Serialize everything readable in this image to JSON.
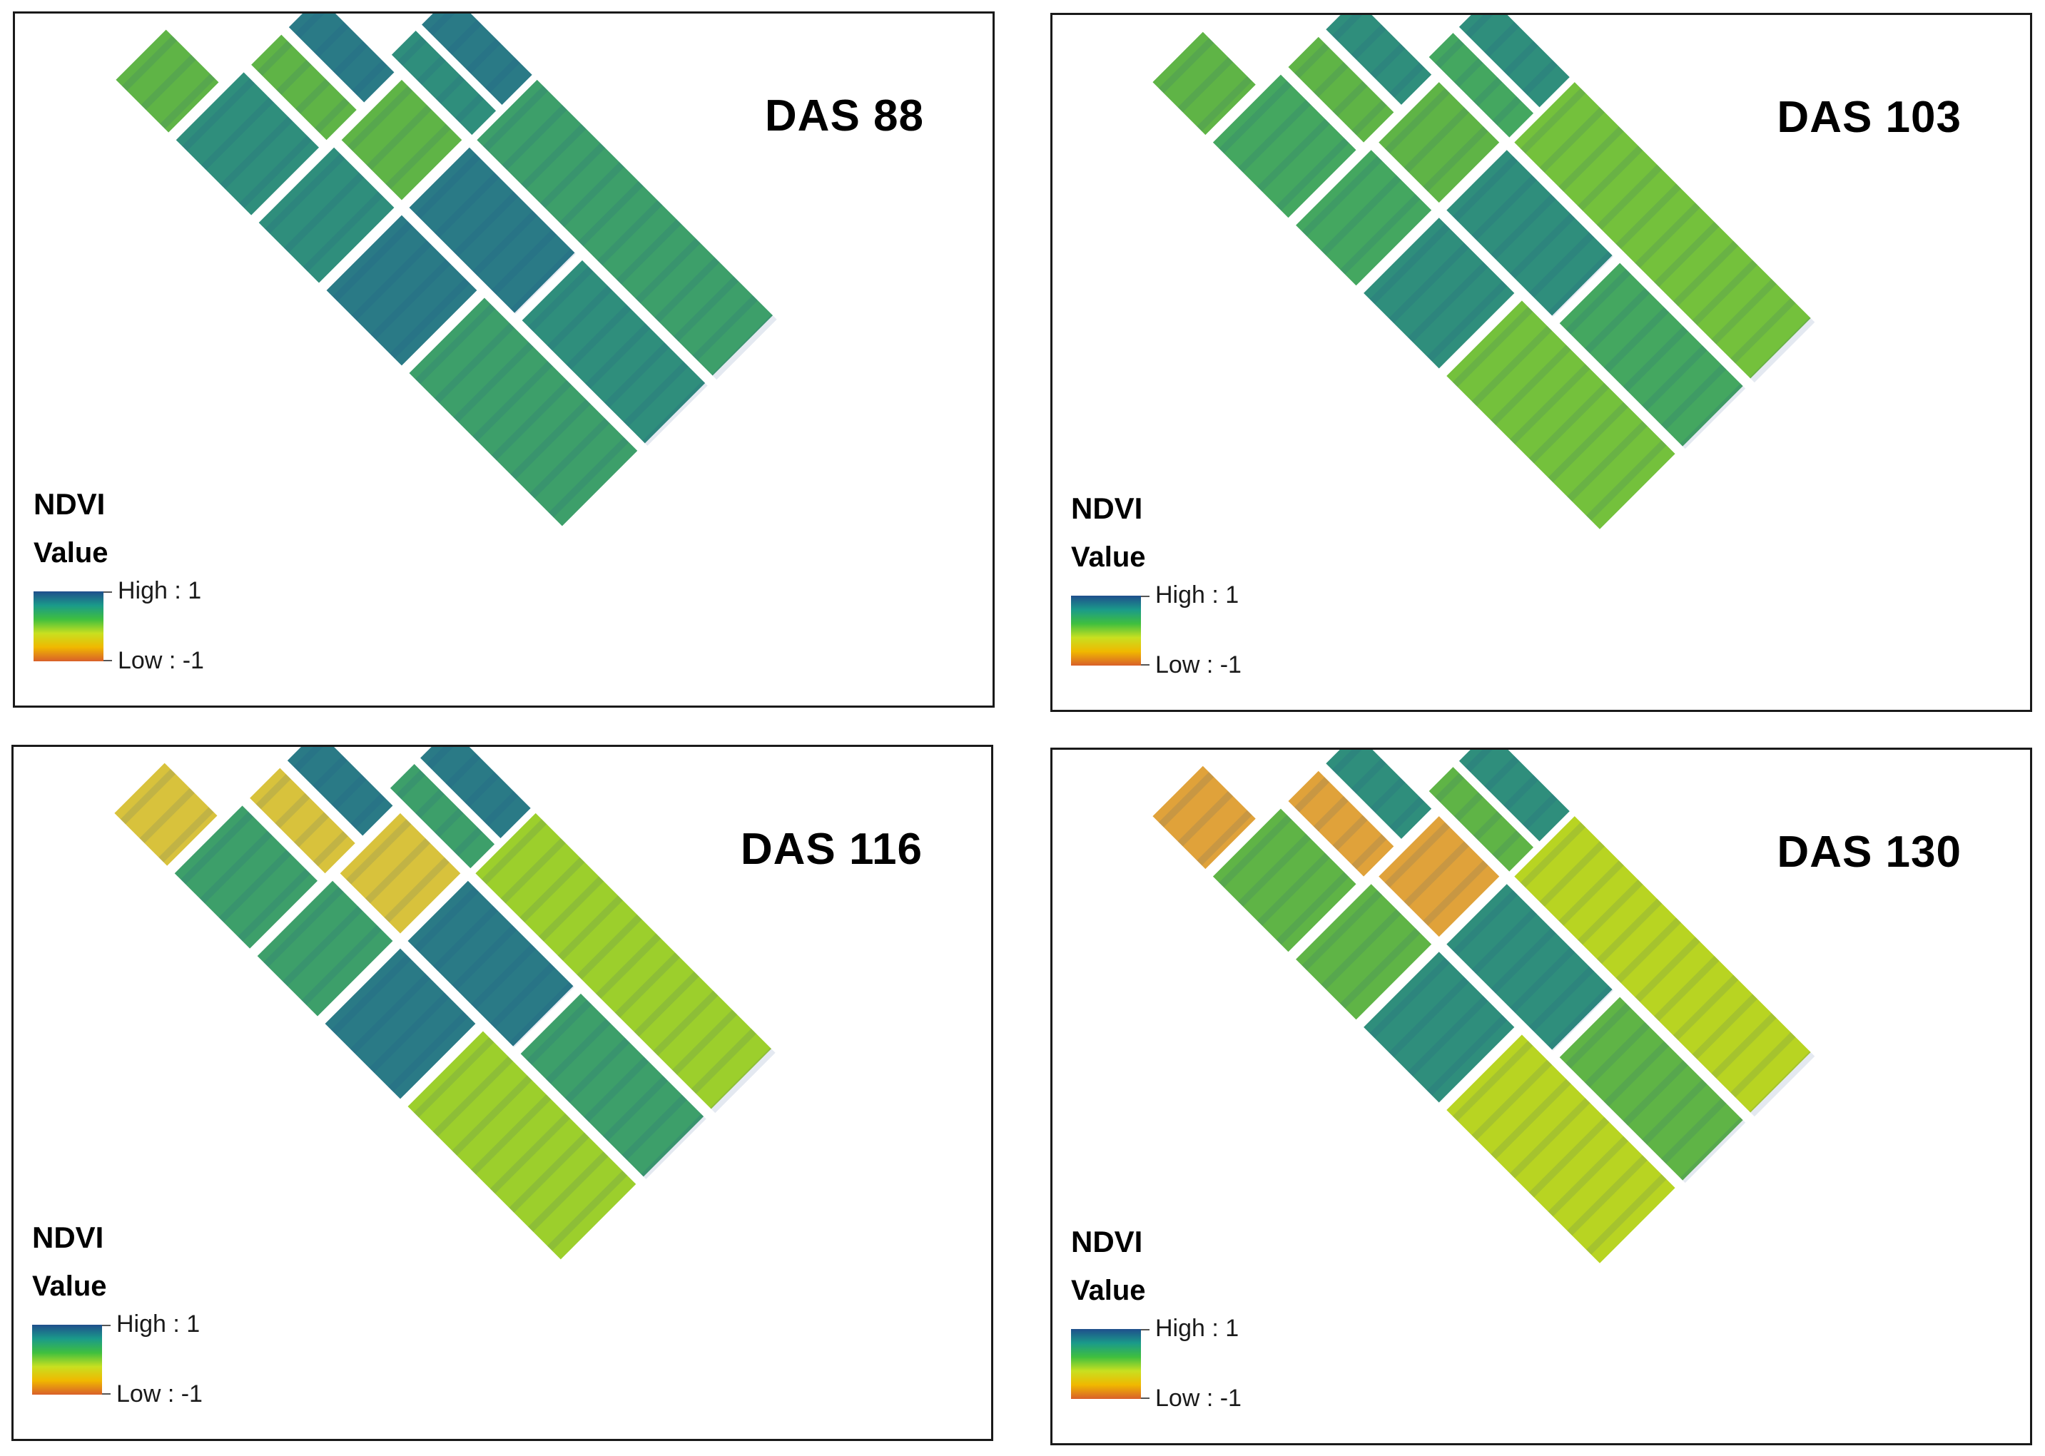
{
  "legend": {
    "title": "NDVI",
    "subtitle": "Value",
    "high_label": "High : 1",
    "low_label": "Low : -1",
    "ramp_colors": [
      "#1f4e8c",
      "#1a9a8a",
      "#3fbf3f",
      "#c8e020",
      "#f0b800",
      "#d9602a"
    ]
  },
  "panels": [
    {
      "title": "DAS 88",
      "stage_colors": {
        "a": "#2f8e7c",
        "b": "#3d9f6a",
        "c": "#5fb446",
        "d": "#2a7a86"
      }
    },
    {
      "title": "DAS 103",
      "stage_colors": {
        "a": "#44a760",
        "b": "#74c13c",
        "c": "#5fb446",
        "d": "#2f8e7c"
      }
    },
    {
      "title": "DAS 116",
      "stage_colors": {
        "a": "#3d9f6a",
        "b": "#9ccf2c",
        "c": "#d8c23c",
        "d": "#2a7a86"
      }
    },
    {
      "title": "DAS 130",
      "stage_colors": {
        "a": "#5fb446",
        "b": "#b8d422",
        "c": "#e0a23a",
        "d": "#2f8e7c"
      }
    }
  ]
}
